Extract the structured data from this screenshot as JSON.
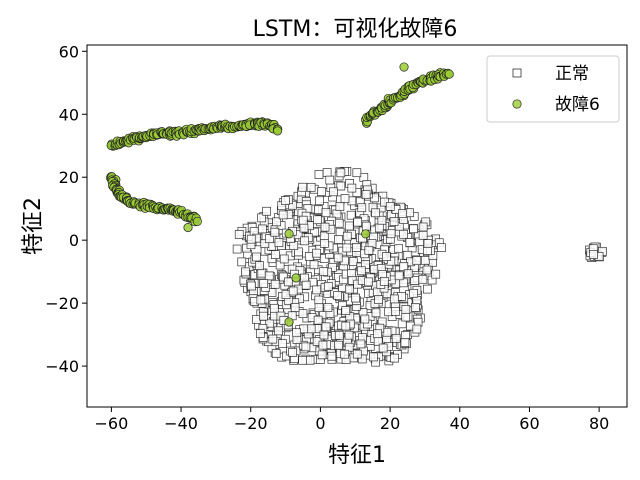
{
  "chart_data": {
    "type": "scatter",
    "title": "LSTM：可视化故障6",
    "xlabel": "特征1",
    "ylabel": "特征2",
    "xlim": [
      -67,
      88
    ],
    "ylim": [
      -53,
      62
    ],
    "xticks": [
      -60,
      -40,
      -20,
      0,
      20,
      40,
      60,
      80
    ],
    "yticks": [
      -40,
      -20,
      0,
      20,
      40,
      60
    ],
    "xtick_labels": [
      "−60",
      "−40",
      "−20",
      "0",
      "20",
      "40",
      "60",
      "80"
    ],
    "ytick_labels": [
      "−40",
      "−20",
      "0",
      "20",
      "40",
      "60"
    ],
    "grid": false,
    "legend_position": "top-right",
    "series": [
      {
        "name": "正常",
        "marker": "square",
        "face_color": "#ffffff",
        "edge_color": "#333333",
        "clusters": [
          {
            "shape": "blob",
            "center": [
              5,
              -10
            ],
            "extent_x": [
              -23,
              34
            ],
            "extent_y": [
              -47,
              14
            ]
          },
          {
            "shape": "blob",
            "center": [
              79,
              -4
            ],
            "extent_x": [
              77,
              81
            ],
            "extent_y": [
              -6,
              -2
            ]
          }
        ]
      },
      {
        "name": "故障6",
        "marker": "circle",
        "face_color": "#9acd32",
        "edge_color": "#222222",
        "clusters": [
          {
            "shape": "curve",
            "points": [
              [
                -60,
                30
              ],
              [
                -55,
                32
              ],
              [
                -50,
                33
              ],
              [
                -45,
                34
              ],
              [
                -40,
                34
              ],
              [
                -35,
                35
              ],
              [
                -30,
                36
              ],
              [
                -25,
                36
              ],
              [
                -20,
                37
              ],
              [
                -15,
                37
              ],
              [
                -12,
                35
              ]
            ]
          },
          {
            "shape": "curve",
            "points": [
              [
                -60,
                20
              ],
              [
                -58,
                15
              ],
              [
                -55,
                12
              ],
              [
                -50,
                11
              ],
              [
                -45,
                10
              ],
              [
                -40,
                9
              ],
              [
                -37,
                7
              ],
              [
                -35,
                6
              ]
            ]
          },
          {
            "shape": "curve",
            "points": [
              [
                13,
                38
              ],
              [
                15,
                40
              ],
              [
                18,
                42
              ],
              [
                20,
                44
              ],
              [
                23,
                46
              ],
              [
                25,
                48
              ],
              [
                28,
                50
              ],
              [
                31,
                51
              ],
              [
                34,
                52
              ],
              [
                37,
                53
              ]
            ]
          },
          {
            "shape": "points",
            "points": [
              [
                -9,
                2
              ],
              [
                -7,
                -12
              ],
              [
                13,
                2
              ],
              [
                -9,
                -26
              ],
              [
                24,
                55
              ],
              [
                -38,
                4
              ]
            ]
          }
        ]
      }
    ]
  }
}
